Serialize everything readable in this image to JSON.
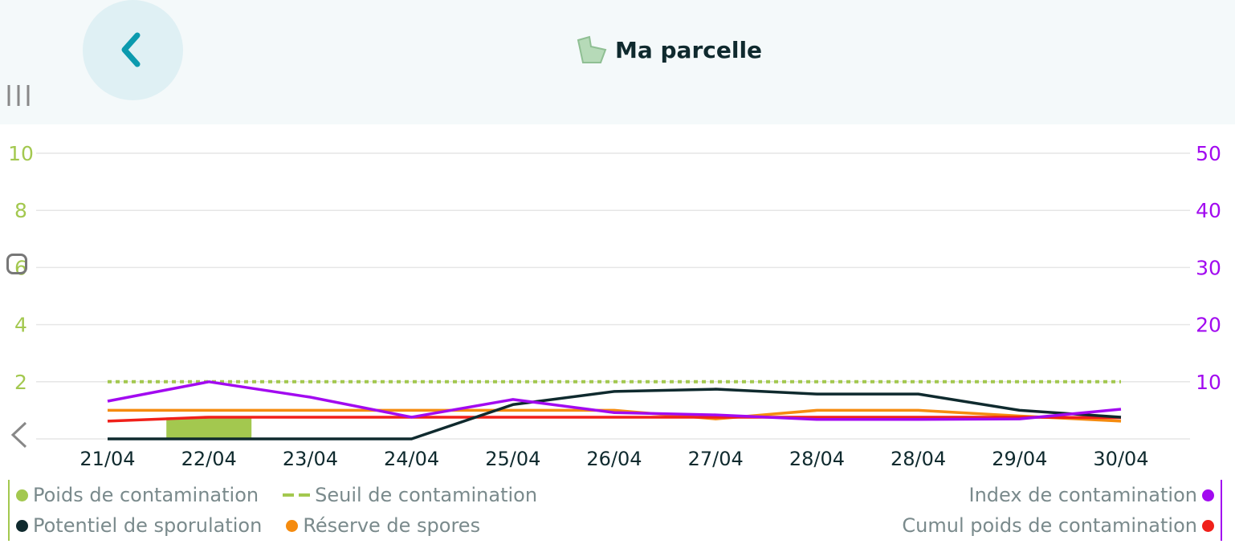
{
  "header": {
    "title": "Ma parcelle",
    "back_icon": "chevron-left-icon",
    "parcel_icon": "parcel-map-icon"
  },
  "colors": {
    "poids": "#a3c84f",
    "seuil": "#a3c84f",
    "sporulation": "#0f2a2e",
    "reserve": "#f58b0f",
    "index": "#a20af0",
    "cumul": "#f0201a",
    "back": "#0b9aae"
  },
  "chart_data": {
    "type": "line",
    "categories": [
      "21/04",
      "22/04",
      "23/04",
      "24/04",
      "25/04",
      "26/04",
      "27/04",
      "28/04",
      "28/04",
      "29/04",
      "30/04"
    ],
    "y_left": {
      "range": [
        0,
        10
      ],
      "ticks": [
        "2",
        "4",
        "6",
        "8",
        "10"
      ],
      "tick_values": [
        2,
        4,
        6,
        8,
        10
      ]
    },
    "y_right": {
      "range": [
        0,
        50
      ],
      "ticks": [
        "10",
        "20",
        "30",
        "40",
        "50"
      ],
      "tick_values": [
        10,
        20,
        30,
        40,
        50
      ]
    },
    "grid": true,
    "series": [
      {
        "name": "Poids de contamination",
        "type": "bar",
        "axis": "left",
        "values": [
          0,
          0.75,
          0,
          0,
          0,
          0,
          0,
          0,
          0,
          0,
          0
        ]
      },
      {
        "name": "Seuil de contamination",
        "type": "dashed",
        "axis": "left",
        "values": [
          2,
          2,
          2,
          2,
          2,
          2,
          2,
          2,
          2,
          2,
          2
        ]
      },
      {
        "name": "Potentiel de sporulation",
        "type": "line",
        "axis": "left",
        "values": [
          0,
          0,
          0,
          0,
          1.2,
          1.66,
          1.74,
          1.57,
          1.57,
          1.0,
          0.76
        ]
      },
      {
        "name": "Réserve de spores",
        "type": "line",
        "axis": "left",
        "values": [
          1.0,
          1.0,
          1.0,
          1.0,
          1.0,
          1.0,
          0.7,
          1.0,
          1.0,
          0.8,
          0.62
        ]
      },
      {
        "name": "Index de contamination",
        "type": "line",
        "axis": "right",
        "values": [
          6.6,
          10,
          7.3,
          3.8,
          6.9,
          4.6,
          4.2,
          3.4,
          3.4,
          3.5,
          5.2
        ]
      },
      {
        "name": "Cumul poids de contamination",
        "type": "line",
        "axis": "right",
        "values": [
          3.1,
          3.8,
          3.8,
          3.8,
          3.8,
          3.8,
          3.8,
          3.8,
          3.8,
          3.8,
          3.7
        ]
      }
    ],
    "legend": {
      "left": [
        "Poids de contamination",
        "Seuil de contamination",
        "Potentiel de sporulation",
        "Réserve de spores"
      ],
      "right": [
        "Index de contamination",
        "Cumul poids de contamination"
      ],
      "placement": "bottom"
    }
  }
}
